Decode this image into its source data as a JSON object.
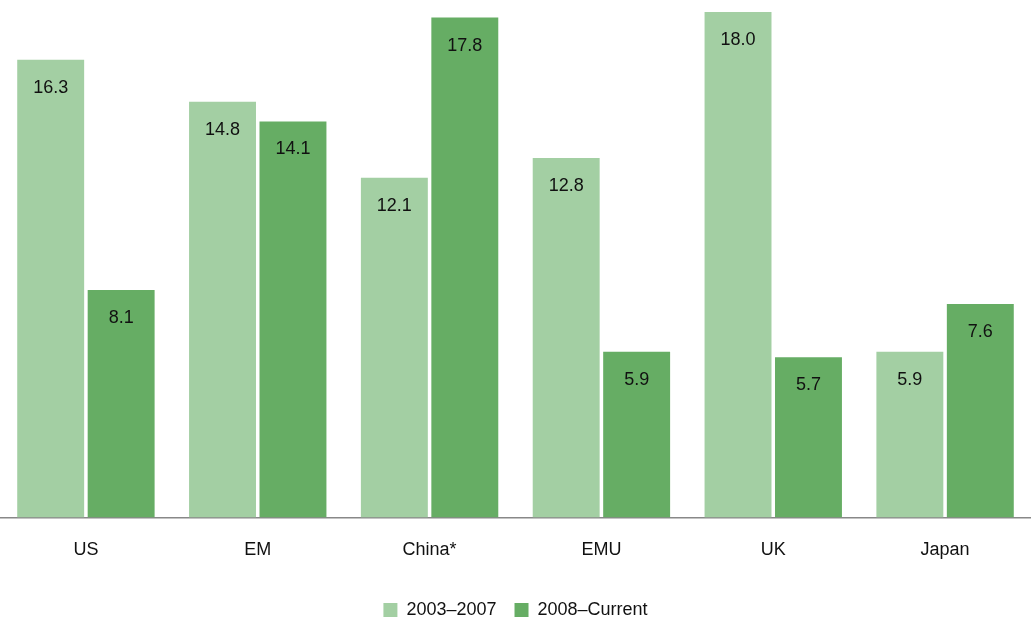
{
  "chart_data": {
    "type": "bar",
    "categories": [
      "US",
      "EM",
      "China*",
      "EMU",
      "UK",
      "Japan"
    ],
    "series": [
      {
        "name": "2003–2007",
        "color": "#a3cfa3",
        "values": [
          16.3,
          14.8,
          12.1,
          12.8,
          18.0,
          5.9
        ],
        "value_labels": [
          "16.3",
          "14.8",
          "12.1",
          "12.8",
          "18.0",
          "5.9"
        ]
      },
      {
        "name": "2008–Current",
        "color": "#66ad64",
        "values": [
          8.1,
          14.1,
          17.8,
          5.9,
          5.7,
          7.6
        ],
        "value_labels": [
          "8.1",
          "14.1",
          "17.8",
          "5.9",
          "5.7",
          "7.6"
        ]
      }
    ],
    "ylim": [
      0,
      18
    ],
    "tick_labels": "x",
    "legend": "bottom",
    "grid": false
  }
}
